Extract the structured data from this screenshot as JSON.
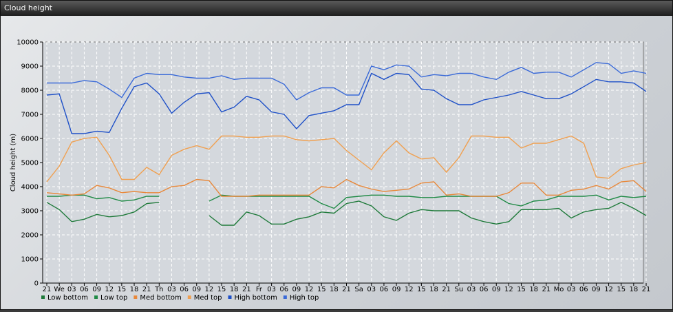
{
  "window": {
    "title": "Cloud height"
  },
  "chart_data": {
    "type": "line",
    "title": "",
    "xlabel": "",
    "ylabel": "Cloud height (m)",
    "ylim": [
      0,
      10000
    ],
    "yticks": [
      0,
      1000,
      2000,
      3000,
      4000,
      5000,
      6000,
      7000,
      8000,
      9000,
      10000
    ],
    "grid": true,
    "legend_position": "bottom-left",
    "categories": [
      "21",
      "We",
      "03",
      "06",
      "09",
      "12",
      "15",
      "18",
      "21",
      "Th",
      "03",
      "06",
      "09",
      "12",
      "15",
      "18",
      "21",
      "Fr",
      "03",
      "06",
      "09",
      "12",
      "15",
      "18",
      "21",
      "Sa",
      "03",
      "06",
      "09",
      "12",
      "15",
      "18",
      "21",
      "Su",
      "03",
      "06",
      "09",
      "12",
      "15",
      "18",
      "21",
      "Mo",
      "03",
      "06",
      "09",
      "12",
      "15",
      "18",
      "21"
    ],
    "series": [
      {
        "name": "Low bottom",
        "color": "#1f7a3a",
        "values": [
          3350,
          3050,
          2550,
          2650,
          2850,
          2750,
          2800,
          2950,
          3300,
          3350,
          null,
          null,
          null,
          2800,
          2400,
          2400,
          2950,
          2800,
          2450,
          2450,
          2650,
          2750,
          2950,
          2900,
          3300,
          3400,
          3200,
          2750,
          2600,
          2900,
          3050,
          3000,
          3000,
          3000,
          2700,
          2550,
          2450,
          2550,
          3050,
          3050,
          3050,
          3100,
          2700,
          2950,
          3050,
          3100,
          3350,
          3100,
          2800
        ]
      },
      {
        "name": "Low top",
        "color": "#1f8a45",
        "values": [
          3600,
          3600,
          3650,
          3650,
          3500,
          3550,
          3400,
          3450,
          3600,
          3600,
          null,
          null,
          null,
          3400,
          3650,
          3600,
          3600,
          3600,
          3600,
          3600,
          3600,
          3600,
          3300,
          3100,
          3550,
          3600,
          3650,
          3650,
          3600,
          3600,
          3550,
          3550,
          3600,
          3600,
          3600,
          3600,
          3600,
          3300,
          3200,
          3400,
          3450,
          3600,
          3600,
          3600,
          3650,
          3450,
          3600,
          3550,
          3600
        ]
      },
      {
        "name": "Med bottom",
        "color": "#e8883a",
        "values": [
          3750,
          3700,
          3650,
          3700,
          4050,
          3950,
          3750,
          3800,
          3750,
          3750,
          4000,
          4050,
          4300,
          4250,
          3600,
          3600,
          3600,
          3650,
          3650,
          3650,
          3650,
          3650,
          4000,
          3950,
          4300,
          4050,
          3900,
          3800,
          3850,
          3900,
          4150,
          4200,
          3650,
          3700,
          3600,
          3600,
          3600,
          3750,
          4150,
          4150,
          3650,
          3650,
          3850,
          3900,
          4050,
          3900,
          4200,
          4250,
          3800
        ]
      },
      {
        "name": "Med top",
        "color": "#f0a050",
        "values": [
          4200,
          4850,
          5850,
          6000,
          6050,
          5300,
          4300,
          4300,
          4800,
          4500,
          5300,
          5550,
          5700,
          5550,
          6100,
          6100,
          6050,
          6050,
          6100,
          6100,
          5950,
          5900,
          5950,
          6000,
          5500,
          5100,
          4700,
          5400,
          5900,
          5400,
          5150,
          5200,
          4600,
          5200,
          6100,
          6100,
          6050,
          6050,
          5600,
          5800,
          5800,
          5950,
          6100,
          5800,
          4400,
          4350,
          4750,
          4900,
          5000
        ]
      },
      {
        "name": "High bottom",
        "color": "#1e50c8",
        "values": [
          7800,
          7850,
          6200,
          6200,
          6300,
          6250,
          7250,
          8150,
          8300,
          7850,
          7050,
          7500,
          7850,
          7900,
          7100,
          7300,
          7750,
          7600,
          7100,
          7000,
          6400,
          6950,
          7050,
          7150,
          7400,
          7400,
          8700,
          8450,
          8700,
          8650,
          8050,
          8000,
          7650,
          7400,
          7400,
          7600,
          7700,
          7800,
          7950,
          7800,
          7650,
          7650,
          7850,
          8150,
          8450,
          8350,
          8350,
          8300,
          7950
        ]
      },
      {
        "name": "High top",
        "color": "#3a6ad8",
        "values": [
          8300,
          8300,
          8300,
          8400,
          8350,
          8050,
          7700,
          8500,
          8700,
          8650,
          8650,
          8550,
          8500,
          8500,
          8600,
          8450,
          8500,
          8500,
          8500,
          8250,
          7600,
          7900,
          8100,
          8100,
          7800,
          7800,
          9000,
          8850,
          9050,
          9000,
          8550,
          8650,
          8600,
          8700,
          8700,
          8550,
          8450,
          8750,
          8950,
          8700,
          8750,
          8750,
          8550,
          8850,
          9150,
          9100,
          8700,
          8800,
          8700
        ]
      }
    ]
  }
}
